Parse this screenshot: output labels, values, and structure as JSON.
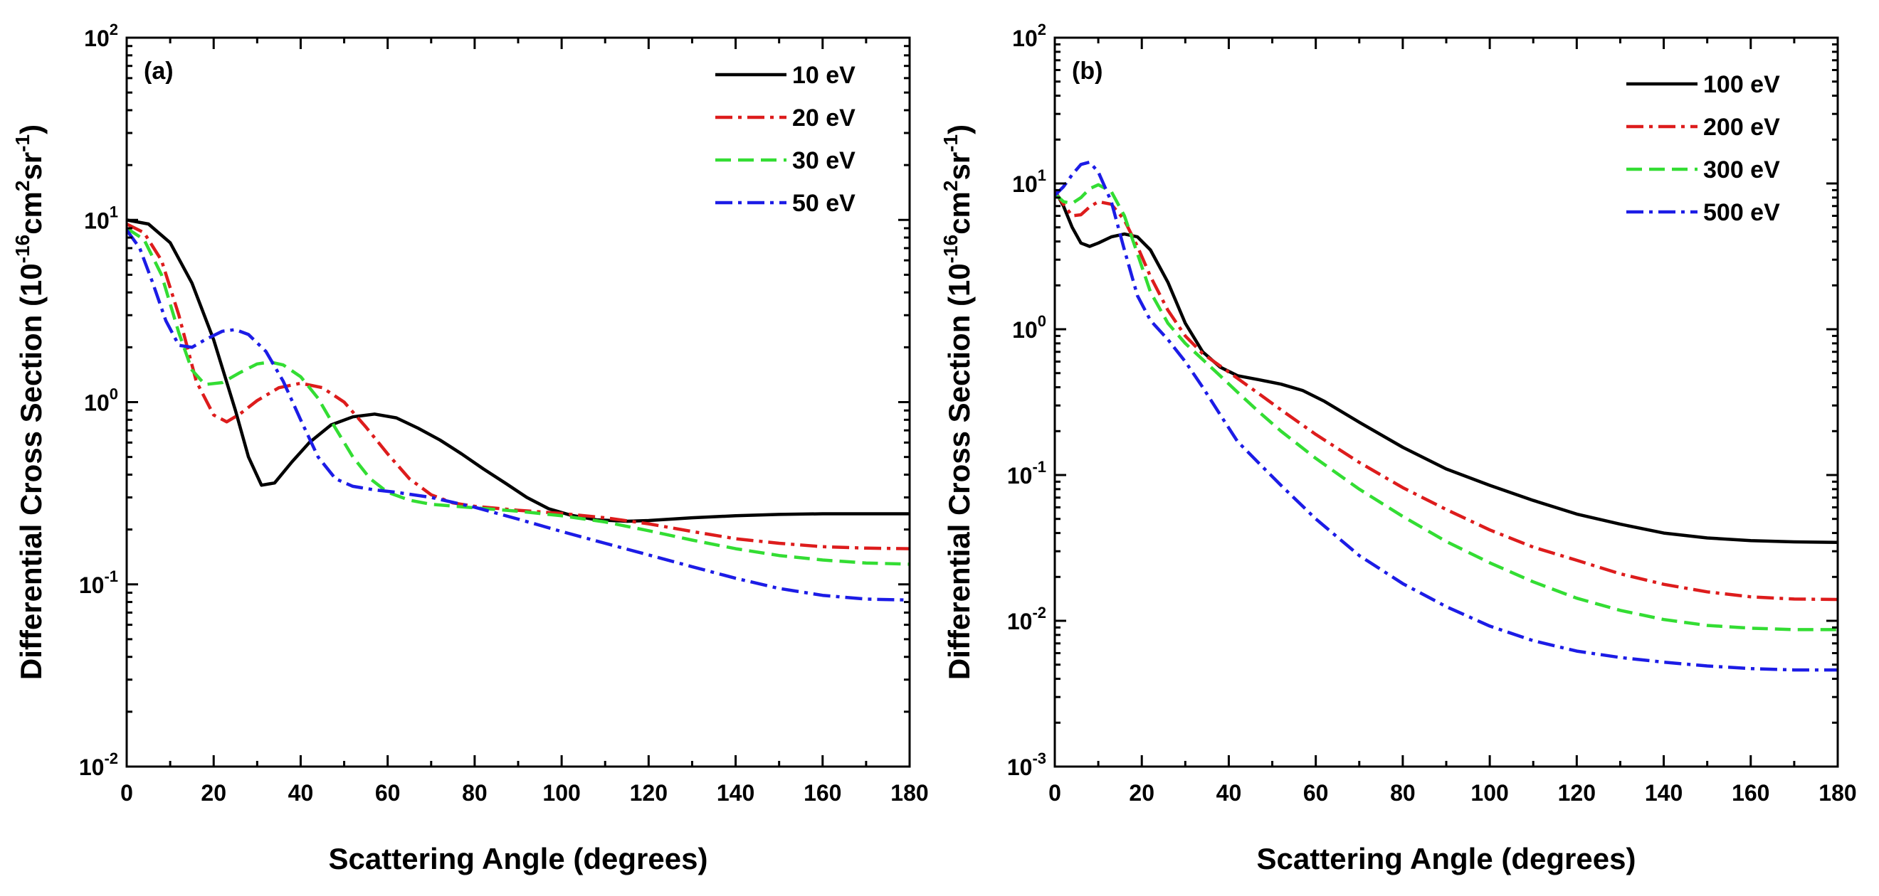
{
  "chart_data": [
    {
      "type": "line",
      "panel_label": "(a)",
      "xlabel": "Scattering Angle (degrees)",
      "ylabel": "Differential Cross Section (10^-16 cm^2 sr^-1)",
      "ylabel_parts": {
        "main": "Differential Cross Section (10",
        "exp1": "-16",
        "mid": "cm",
        "exp2": "2",
        "mid2": "sr",
        "exp3": "-1",
        "end": ")"
      },
      "yscale": "log",
      "xlim": [
        0,
        180
      ],
      "ylim": [
        0.01,
        100
      ],
      "x_ticks": [
        0,
        20,
        40,
        60,
        80,
        100,
        120,
        140,
        160,
        180
      ],
      "y_ticks": [
        {
          "base": "10",
          "exp": "-2",
          "value": 0.01
        },
        {
          "base": "10",
          "exp": "-1",
          "value": 0.1
        },
        {
          "base": "10",
          "exp": "0",
          "value": 1
        },
        {
          "base": "10",
          "exp": "1",
          "value": 10
        },
        {
          "base": "10",
          "exp": "2",
          "value": 100
        }
      ],
      "legend_position": "top-right",
      "series": [
        {
          "name": "10 eV",
          "color": "#000000",
          "style": "solid",
          "points": [
            [
              0,
              10
            ],
            [
              5,
              9.5
            ],
            [
              10,
              7.5
            ],
            [
              15,
              4.5
            ],
            [
              20,
              2.2
            ],
            [
              25,
              0.9
            ],
            [
              28,
              0.5
            ],
            [
              31,
              0.35
            ],
            [
              34,
              0.36
            ],
            [
              38,
              0.47
            ],
            [
              42,
              0.6
            ],
            [
              47,
              0.75
            ],
            [
              52,
              0.83
            ],
            [
              57,
              0.86
            ],
            [
              62,
              0.82
            ],
            [
              67,
              0.72
            ],
            [
              72,
              0.62
            ],
            [
              77,
              0.52
            ],
            [
              82,
              0.43
            ],
            [
              87,
              0.36
            ],
            [
              92,
              0.3
            ],
            [
              97,
              0.26
            ],
            [
              102,
              0.24
            ],
            [
              108,
              0.226
            ],
            [
              115,
              0.222
            ],
            [
              120,
              0.224
            ],
            [
              130,
              0.232
            ],
            [
              140,
              0.238
            ],
            [
              150,
              0.242
            ],
            [
              160,
              0.244
            ],
            [
              170,
              0.244
            ],
            [
              180,
              0.244
            ]
          ]
        },
        {
          "name": "20 eV",
          "color": "#dd1c1c",
          "style": "dashdot",
          "points": [
            [
              0,
              9.5
            ],
            [
              4,
              8.5
            ],
            [
              8,
              6
            ],
            [
              12,
              3
            ],
            [
              16,
              1.3
            ],
            [
              20,
              0.85
            ],
            [
              23,
              0.78
            ],
            [
              26,
              0.86
            ],
            [
              30,
              1.02
            ],
            [
              35,
              1.2
            ],
            [
              40,
              1.27
            ],
            [
              45,
              1.2
            ],
            [
              50,
              1.0
            ],
            [
              55,
              0.73
            ],
            [
              60,
              0.52
            ],
            [
              65,
              0.38
            ],
            [
              70,
              0.31
            ],
            [
              75,
              0.28
            ],
            [
              80,
              0.268
            ],
            [
              90,
              0.255
            ],
            [
              100,
              0.245
            ],
            [
              110,
              0.232
            ],
            [
              120,
              0.215
            ],
            [
              130,
              0.195
            ],
            [
              140,
              0.178
            ],
            [
              150,
              0.168
            ],
            [
              160,
              0.161
            ],
            [
              170,
              0.158
            ],
            [
              180,
              0.157
            ]
          ]
        },
        {
          "name": "30 eV",
          "color": "#33dd33",
          "style": "dashed",
          "points": [
            [
              0,
              9.0
            ],
            [
              4,
              7.8
            ],
            [
              8,
              5
            ],
            [
              12,
              2.4
            ],
            [
              15,
              1.5
            ],
            [
              18,
              1.25
            ],
            [
              22,
              1.28
            ],
            [
              26,
              1.45
            ],
            [
              30,
              1.62
            ],
            [
              33,
              1.66
            ],
            [
              36,
              1.6
            ],
            [
              40,
              1.38
            ],
            [
              44,
              1.05
            ],
            [
              48,
              0.72
            ],
            [
              52,
              0.5
            ],
            [
              56,
              0.38
            ],
            [
              60,
              0.32
            ],
            [
              65,
              0.29
            ],
            [
              70,
              0.275
            ],
            [
              80,
              0.263
            ],
            [
              90,
              0.252
            ],
            [
              100,
              0.238
            ],
            [
              110,
              0.22
            ],
            [
              120,
              0.197
            ],
            [
              130,
              0.175
            ],
            [
              140,
              0.157
            ],
            [
              150,
              0.144
            ],
            [
              160,
              0.136
            ],
            [
              170,
              0.131
            ],
            [
              180,
              0.129
            ]
          ]
        },
        {
          "name": "50 eV",
          "color": "#1c1ce6",
          "style": "dashdot",
          "points": [
            [
              0,
              8.8
            ],
            [
              3,
              7.0
            ],
            [
              6,
              4.5
            ],
            [
              9,
              2.8
            ],
            [
              12,
              2.05
            ],
            [
              15,
              2.0
            ],
            [
              18,
              2.2
            ],
            [
              22,
              2.45
            ],
            [
              25,
              2.5
            ],
            [
              28,
              2.35
            ],
            [
              32,
              1.9
            ],
            [
              36,
              1.3
            ],
            [
              40,
              0.8
            ],
            [
              44,
              0.5
            ],
            [
              48,
              0.38
            ],
            [
              52,
              0.345
            ],
            [
              57,
              0.33
            ],
            [
              62,
              0.32
            ],
            [
              70,
              0.3
            ],
            [
              80,
              0.265
            ],
            [
              90,
              0.228
            ],
            [
              100,
              0.195
            ],
            [
              110,
              0.168
            ],
            [
              120,
              0.145
            ],
            [
              130,
              0.125
            ],
            [
              140,
              0.108
            ],
            [
              150,
              0.095
            ],
            [
              160,
              0.087
            ],
            [
              170,
              0.083
            ],
            [
              180,
              0.082
            ]
          ]
        }
      ]
    },
    {
      "type": "line",
      "panel_label": "(b)",
      "xlabel": "Scattering Angle (degrees)",
      "ylabel": "Differential Cross Section (10^-16 cm^2 sr^-1)",
      "ylabel_parts": {
        "main": "Differential Cross Section (10",
        "exp1": "-16",
        "mid": "cm",
        "exp2": "2",
        "mid2": "sr",
        "exp3": "-1",
        "end": ")"
      },
      "yscale": "log",
      "xlim": [
        0,
        180
      ],
      "ylim": [
        0.001,
        100
      ],
      "x_ticks": [
        0,
        20,
        40,
        60,
        80,
        100,
        120,
        140,
        160,
        180
      ],
      "y_ticks": [
        {
          "base": "10",
          "exp": "-3",
          "value": 0.001
        },
        {
          "base": "10",
          "exp": "-2",
          "value": 0.01
        },
        {
          "base": "10",
          "exp": "-1",
          "value": 0.1
        },
        {
          "base": "10",
          "exp": "0",
          "value": 1
        },
        {
          "base": "10",
          "exp": "1",
          "value": 10
        },
        {
          "base": "10",
          "exp": "2",
          "value": 100
        }
      ],
      "legend_position": "top-right",
      "series": [
        {
          "name": "100 eV",
          "color": "#000000",
          "style": "solid",
          "points": [
            [
              0,
              9.0
            ],
            [
              2,
              7.0
            ],
            [
              4,
              5.0
            ],
            [
              6,
              3.9
            ],
            [
              8,
              3.7
            ],
            [
              10,
              3.9
            ],
            [
              13,
              4.3
            ],
            [
              16,
              4.5
            ],
            [
              19,
              4.3
            ],
            [
              22,
              3.5
            ],
            [
              26,
              2.1
            ],
            [
              30,
              1.1
            ],
            [
              34,
              0.7
            ],
            [
              38,
              0.55
            ],
            [
              42,
              0.48
            ],
            [
              47,
              0.45
            ],
            [
              52,
              0.42
            ],
            [
              57,
              0.38
            ],
            [
              62,
              0.32
            ],
            [
              70,
              0.23
            ],
            [
              80,
              0.155
            ],
            [
              90,
              0.11
            ],
            [
              100,
              0.085
            ],
            [
              110,
              0.067
            ],
            [
              120,
              0.054
            ],
            [
              130,
              0.046
            ],
            [
              140,
              0.04
            ],
            [
              150,
              0.037
            ],
            [
              160,
              0.0355
            ],
            [
              170,
              0.0348
            ],
            [
              180,
              0.0345
            ]
          ]
        },
        {
          "name": "200 eV",
          "color": "#dd1c1c",
          "style": "dashdot",
          "points": [
            [
              0,
              8.8
            ],
            [
              2,
              7.2
            ],
            [
              4,
              6.0
            ],
            [
              6,
              6.1
            ],
            [
              8,
              6.9
            ],
            [
              10,
              7.5
            ],
            [
              13,
              7.2
            ],
            [
              16,
              5.6
            ],
            [
              19,
              3.7
            ],
            [
              22,
              2.3
            ],
            [
              26,
              1.35
            ],
            [
              30,
              0.9
            ],
            [
              34,
              0.68
            ],
            [
              38,
              0.56
            ],
            [
              42,
              0.46
            ],
            [
              47,
              0.36
            ],
            [
              52,
              0.28
            ],
            [
              60,
              0.19
            ],
            [
              70,
              0.122
            ],
            [
              80,
              0.082
            ],
            [
              90,
              0.058
            ],
            [
              100,
              0.042
            ],
            [
              110,
              0.032
            ],
            [
              120,
              0.026
            ],
            [
              130,
              0.021
            ],
            [
              140,
              0.0178
            ],
            [
              150,
              0.0158
            ],
            [
              160,
              0.0146
            ],
            [
              170,
              0.0141
            ],
            [
              180,
              0.014
            ]
          ]
        },
        {
          "name": "300 eV",
          "color": "#33dd33",
          "style": "dashed",
          "points": [
            [
              0,
              8.5
            ],
            [
              2,
              7.5
            ],
            [
              4,
              7.3
            ],
            [
              6,
              8.0
            ],
            [
              8,
              9.2
            ],
            [
              10,
              9.8
            ],
            [
              13,
              8.8
            ],
            [
              16,
              6.0
            ],
            [
              19,
              3.3
            ],
            [
              22,
              1.8
            ],
            [
              26,
              1.1
            ],
            [
              30,
              0.8
            ],
            [
              34,
              0.62
            ],
            [
              38,
              0.48
            ],
            [
              42,
              0.37
            ],
            [
              47,
              0.27
            ],
            [
              52,
              0.2
            ],
            [
              60,
              0.13
            ],
            [
              70,
              0.08
            ],
            [
              80,
              0.052
            ],
            [
              90,
              0.035
            ],
            [
              100,
              0.025
            ],
            [
              110,
              0.0185
            ],
            [
              120,
              0.0143
            ],
            [
              130,
              0.0118
            ],
            [
              140,
              0.0102
            ],
            [
              150,
              0.0093
            ],
            [
              160,
              0.0089
            ],
            [
              170,
              0.0087
            ],
            [
              180,
              0.0087
            ]
          ]
        },
        {
          "name": "500 eV",
          "color": "#1c1ce6",
          "style": "dashdot",
          "points": [
            [
              0,
              8.3
            ],
            [
              2,
              9.5
            ],
            [
              4,
              11.5
            ],
            [
              6,
              13.5
            ],
            [
              8,
              14.0
            ],
            [
              10,
              12.0
            ],
            [
              13,
              7.5
            ],
            [
              16,
              3.5
            ],
            [
              19,
              1.7
            ],
            [
              22,
              1.15
            ],
            [
              26,
              0.85
            ],
            [
              30,
              0.6
            ],
            [
              34,
              0.4
            ],
            [
              38,
              0.26
            ],
            [
              42,
              0.17
            ],
            [
              47,
              0.12
            ],
            [
              52,
              0.085
            ],
            [
              60,
              0.05
            ],
            [
              70,
              0.028
            ],
            [
              80,
              0.018
            ],
            [
              90,
              0.0125
            ],
            [
              100,
              0.0092
            ],
            [
              110,
              0.0073
            ],
            [
              120,
              0.0062
            ],
            [
              130,
              0.0056
            ],
            [
              140,
              0.0052
            ],
            [
              150,
              0.0049
            ],
            [
              160,
              0.0047
            ],
            [
              170,
              0.0046
            ],
            [
              180,
              0.0046
            ]
          ]
        }
      ]
    }
  ]
}
